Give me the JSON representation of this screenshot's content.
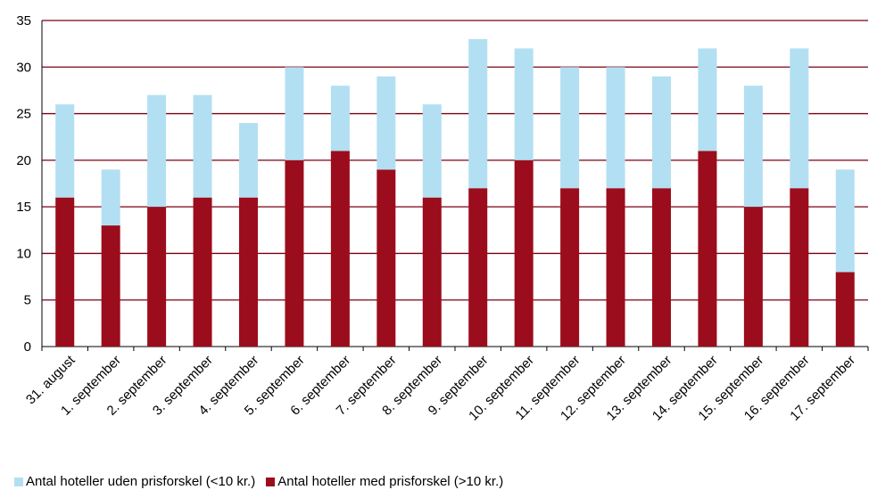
{
  "chart_data": {
    "type": "bar",
    "stacked": true,
    "categories": [
      "31. august",
      "1. september",
      "2. september",
      "3. september",
      "4. september",
      "5. september",
      "6. september",
      "7. september",
      "8. september",
      "9. september",
      "10. september",
      "11. september",
      "12. september",
      "13. september",
      "14. september",
      "15. september",
      "16. september",
      "17. september"
    ],
    "series": [
      {
        "name": "Antal hoteller med prisforskel (>10 kr.)",
        "color": "#9b0d1c",
        "values": [
          16,
          13,
          15,
          16,
          16,
          20,
          21,
          19,
          16,
          17,
          20,
          17,
          17,
          17,
          21,
          15,
          17,
          8
        ]
      },
      {
        "name": "Antal hoteller uden prisforskel (<10 kr.)",
        "color": "#b3dff2",
        "values": [
          10,
          6,
          12,
          11,
          8,
          10,
          7,
          10,
          10,
          16,
          12,
          13,
          13,
          12,
          11,
          13,
          15,
          11
        ]
      }
    ],
    "legend_order": [
      1,
      0
    ],
    "ylim": [
      0,
      35
    ],
    "yticks": [
      0,
      5,
      10,
      15,
      20,
      25,
      30,
      35
    ],
    "xlabel": "",
    "ylabel": "",
    "title": "",
    "grid": true,
    "gridline_color": "#7a0010",
    "legend_position": "bottom-left"
  }
}
